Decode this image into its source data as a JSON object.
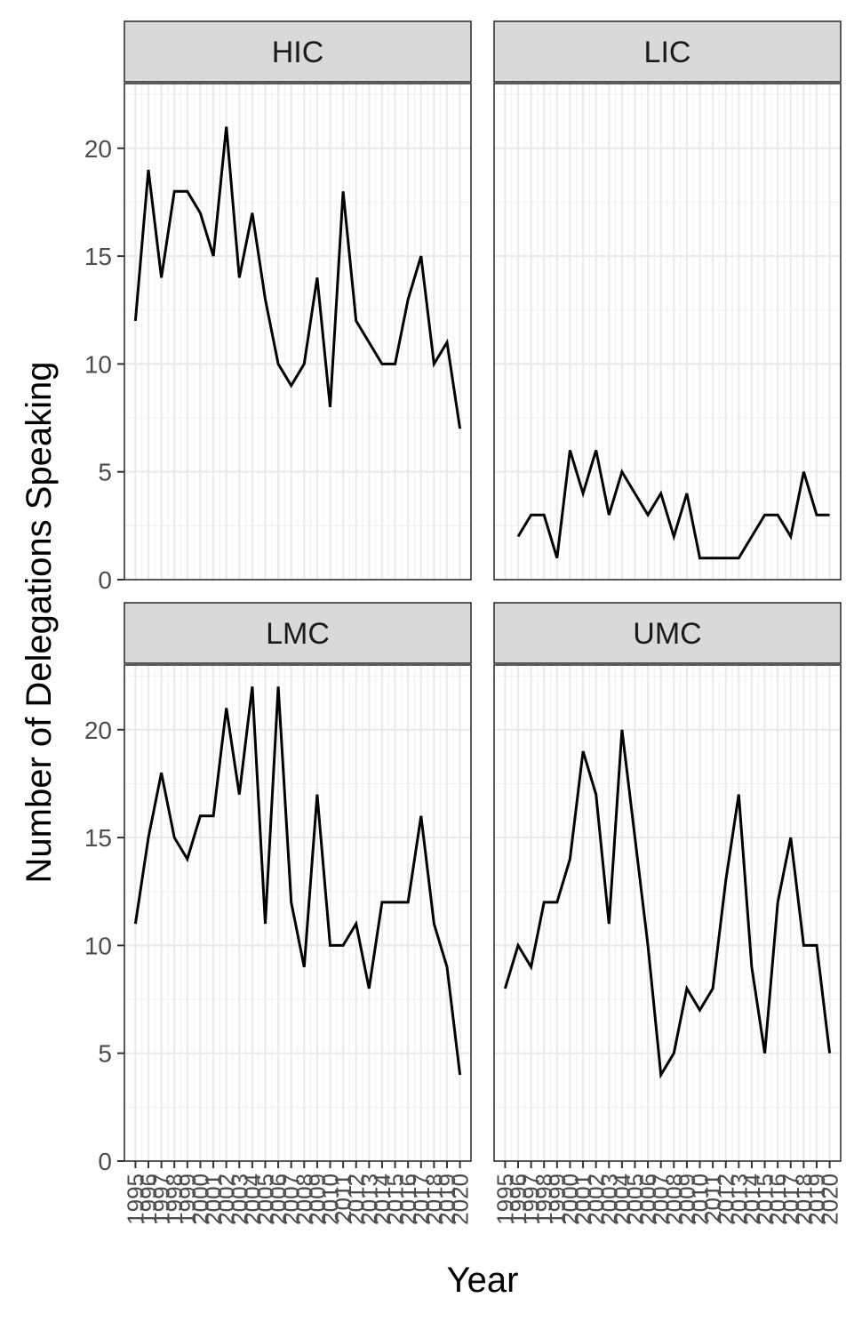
{
  "chart_data": {
    "type": "line",
    "xlabel": "Year",
    "ylabel": "Number of Delegations Speaking",
    "ylim": [
      0,
      23
    ],
    "y_ticks": [
      0,
      5,
      10,
      15,
      20
    ],
    "x_ticks": [
      "1995",
      "1996",
      "1997",
      "1998",
      "1999",
      "2000",
      "2001",
      "2002",
      "2003",
      "2004",
      "2005",
      "2006",
      "2007",
      "2008",
      "2009",
      "2010",
      "2011",
      "2012",
      "2013",
      "2014",
      "2015",
      "2016",
      "2017",
      "2018",
      "2019",
      "2020"
    ],
    "grid": true,
    "facets": [
      {
        "label": "HIC",
        "x": [
          1995,
          1996,
          1997,
          1998,
          1999,
          2000,
          2001,
          2002,
          2003,
          2004,
          2005,
          2006,
          2007,
          2008,
          2009,
          2010,
          2011,
          2012,
          2013,
          2014,
          2015,
          2016,
          2017,
          2018,
          2019,
          2020
        ],
        "values": [
          12,
          19,
          14,
          18,
          18,
          17,
          15,
          21,
          14,
          17,
          13,
          10,
          9,
          10,
          14,
          8,
          18,
          12,
          11,
          10,
          10,
          13,
          15,
          10,
          11,
          7
        ]
      },
      {
        "label": "LIC",
        "x": [
          1996,
          1997,
          1998,
          1999,
          2000,
          2001,
          2002,
          2003,
          2004,
          2005,
          2006,
          2007,
          2008,
          2009,
          2010,
          2011,
          2012,
          2013,
          2014,
          2015,
          2016,
          2017,
          2018,
          2019,
          2020
        ],
        "values": [
          2,
          3,
          3,
          1,
          6,
          4,
          6,
          3,
          5,
          4,
          3,
          4,
          2,
          4,
          1,
          1,
          1,
          1,
          2,
          3,
          3,
          2,
          5,
          3,
          3
        ]
      },
      {
        "label": "LMC",
        "x": [
          1995,
          1996,
          1997,
          1998,
          1999,
          2000,
          2001,
          2002,
          2003,
          2004,
          2005,
          2006,
          2007,
          2008,
          2009,
          2010,
          2011,
          2012,
          2013,
          2014,
          2015,
          2016,
          2017,
          2018,
          2019,
          2020
        ],
        "values": [
          11,
          15,
          18,
          15,
          14,
          16,
          16,
          21,
          17,
          22,
          11,
          22,
          12,
          9,
          17,
          10,
          10,
          11,
          8,
          12,
          12,
          12,
          16,
          11,
          9,
          4
        ]
      },
      {
        "label": "UMC",
        "x": [
          1995,
          1996,
          1997,
          1998,
          1999,
          2000,
          2001,
          2002,
          2003,
          2004,
          2005,
          2006,
          2007,
          2008,
          2009,
          2010,
          2011,
          2012,
          2013,
          2014,
          2015,
          2016,
          2017,
          2018,
          2019,
          2020
        ],
        "values": [
          8,
          10,
          9,
          12,
          12,
          14,
          19,
          17,
          11,
          20,
          15,
          10,
          4,
          5,
          8,
          7,
          8,
          13,
          17,
          9,
          5,
          12,
          15,
          10,
          10,
          5
        ]
      }
    ]
  }
}
